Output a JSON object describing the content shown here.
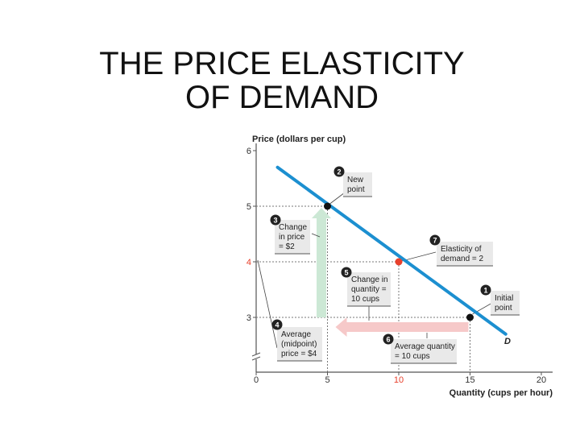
{
  "slide": {
    "title_line1": "THE PRICE ELASTICITY",
    "title_line2": "OF DEMAND"
  },
  "colors": {
    "demand_line": "#1c8fd0",
    "highlight": "#e8402c",
    "up_arrow": "#cce8d5",
    "left_arrow": "#f6c9c9",
    "callout_bg": "#e9e9e9",
    "badge": "#222222"
  },
  "chart_data": {
    "type": "line",
    "xlabel": "Quantity (cups per hour)",
    "ylabel": "Price (dollars per cup)",
    "xlim": [
      0,
      20
    ],
    "ylim": [
      2.5,
      6
    ],
    "x_ticks": [
      "0",
      "5",
      "10",
      "15",
      "20"
    ],
    "y_ticks": [
      "3",
      "4",
      "5",
      "6"
    ],
    "highlight_x_tick": "10",
    "highlight_y_tick": "4",
    "series": [
      {
        "name": "D",
        "x": [
          1.5,
          17.5
        ],
        "y": [
          5.7,
          2.7
        ]
      }
    ],
    "points": [
      {
        "x": 15,
        "y": 3,
        "role": "initial"
      },
      {
        "x": 5,
        "y": 5,
        "role": "new"
      },
      {
        "x": 10,
        "y": 4,
        "role": "midpoint"
      }
    ],
    "callouts": [
      {
        "number": "1",
        "lines": [
          "Initial",
          "point"
        ]
      },
      {
        "number": "2",
        "lines": [
          "New",
          "point"
        ]
      },
      {
        "number": "3",
        "lines": [
          "Change",
          "in price",
          "= $2"
        ]
      },
      {
        "number": "4",
        "lines": [
          "Average",
          "(midpoint)",
          "price = $4"
        ]
      },
      {
        "number": "5",
        "lines": [
          "Change in",
          "quantity =",
          "10 cups"
        ]
      },
      {
        "number": "6",
        "lines": [
          "Average quantity",
          "= 10 cups"
        ]
      },
      {
        "number": "7",
        "lines": [
          "Elasticity of",
          "demand = 2"
        ]
      }
    ]
  }
}
